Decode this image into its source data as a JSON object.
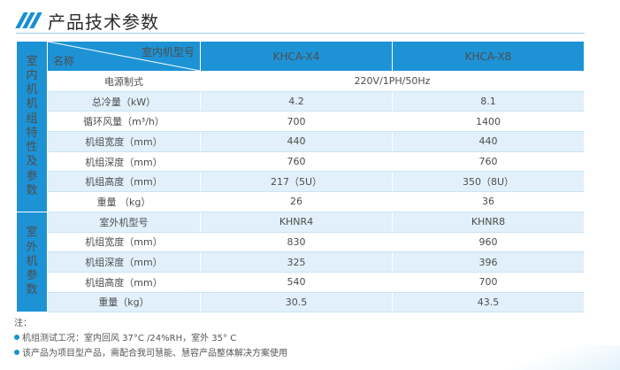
{
  "title": "产品技术参数",
  "table": {
    "corner_top": "室内机型号",
    "corner_bottom": "名称",
    "models": [
      "KHCA-X4",
      "KHCA-X8"
    ],
    "indoor_group": [
      "室",
      "内",
      "机",
      "机",
      "组",
      "特",
      "性",
      "及",
      "参",
      "数"
    ],
    "outdoor_group": [
      "室",
      "外",
      "机",
      "参",
      "数"
    ],
    "indoor_rows": [
      {
        "label": "电源制式",
        "merged": "220V/1PH/50Hz"
      },
      {
        "label": "总冷量（kW）",
        "v1": "4.2",
        "v2": "8.1"
      },
      {
        "label": "循环风量（m³/h）",
        "v1": "700",
        "v2": "1400"
      },
      {
        "label": "机组宽度（mm）",
        "v1": "440",
        "v2": "440"
      },
      {
        "label": "机组深度（mm）",
        "v1": "760",
        "v2": "760"
      },
      {
        "label": "机组高度（mm）",
        "v1": "217（5U）",
        "v2": "350（8U）"
      },
      {
        "label": "重量 （kg）",
        "v1": "26",
        "v2": "36"
      }
    ],
    "outdoor_rows": [
      {
        "label": "室外机型号",
        "v1": "KHNR4",
        "v2": "KHNR8"
      },
      {
        "label": "机组宽度（mm）",
        "v1": "830",
        "v2": "960"
      },
      {
        "label": "机组深度（mm）",
        "v1": "325",
        "v2": "396"
      },
      {
        "label": "机组高度（mm）",
        "v1": "540",
        "v2": "700"
      },
      {
        "label": "重量（kg）",
        "v1": "30.5",
        "v2": "43.5"
      }
    ]
  },
  "notes": {
    "heading": "注：",
    "items": [
      "机组测试工况：室内回风 37°C /24%RH，室外 35° C",
      "该产品为项目型产品，需配合我司慧能、慧容产品整体解决方案使用"
    ]
  }
}
